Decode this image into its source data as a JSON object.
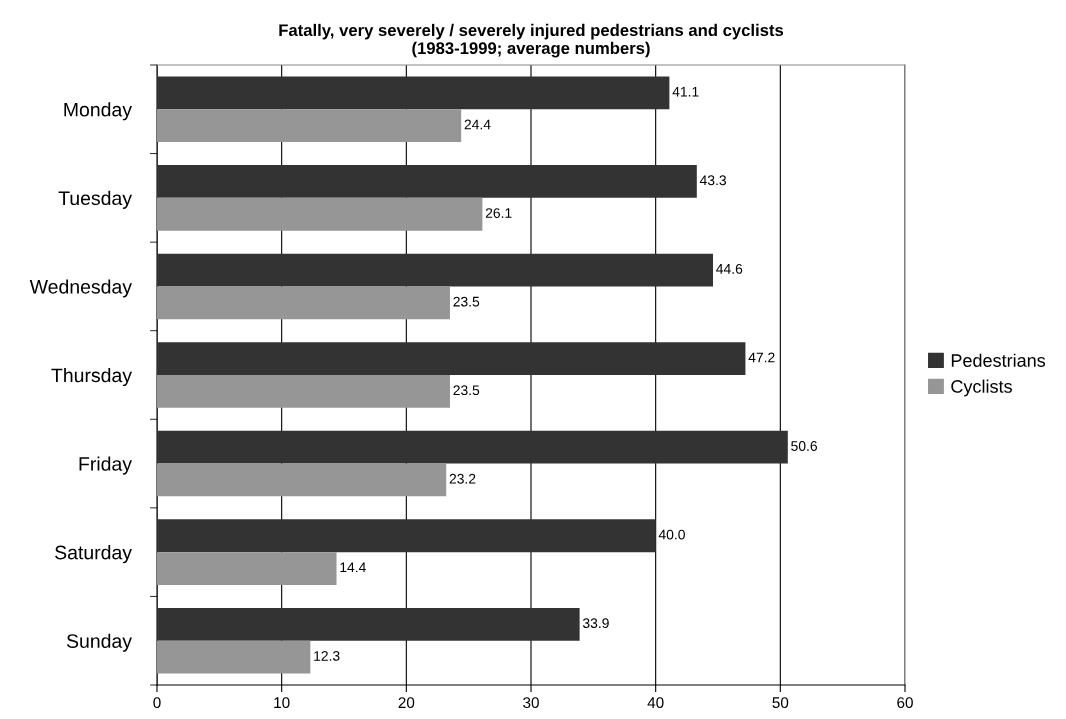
{
  "chart_data": {
    "type": "bar",
    "orientation": "horizontal",
    "title": "Fatally, very severely / severely injured pedestrians and cyclists\n(1983-1999; average numbers)",
    "categories": [
      "Monday",
      "Tuesday",
      "Wednesday",
      "Thursday",
      "Friday",
      "Saturday",
      "Sunday"
    ],
    "series": [
      {
        "name": "Pedestrians",
        "color": "#333333",
        "values": [
          41.1,
          43.3,
          44.6,
          47.2,
          50.6,
          40.0,
          33.9
        ],
        "value_labels": [
          "41.1",
          "43.3",
          "44.6",
          "47.2",
          "50.6",
          "40.0",
          "33.9"
        ]
      },
      {
        "name": "Cyclists",
        "color": "#969696",
        "values": [
          24.4,
          26.1,
          23.5,
          23.5,
          23.2,
          14.4,
          12.3
        ],
        "value_labels": [
          "24.4",
          "26.1",
          "23.5",
          "23.5",
          "23.2",
          "14.4",
          "12.3"
        ]
      }
    ],
    "xlim": [
      0,
      60
    ],
    "xticks": [
      0,
      10,
      20,
      30,
      40,
      50,
      60
    ],
    "grid": "x",
    "legend": "right"
  }
}
